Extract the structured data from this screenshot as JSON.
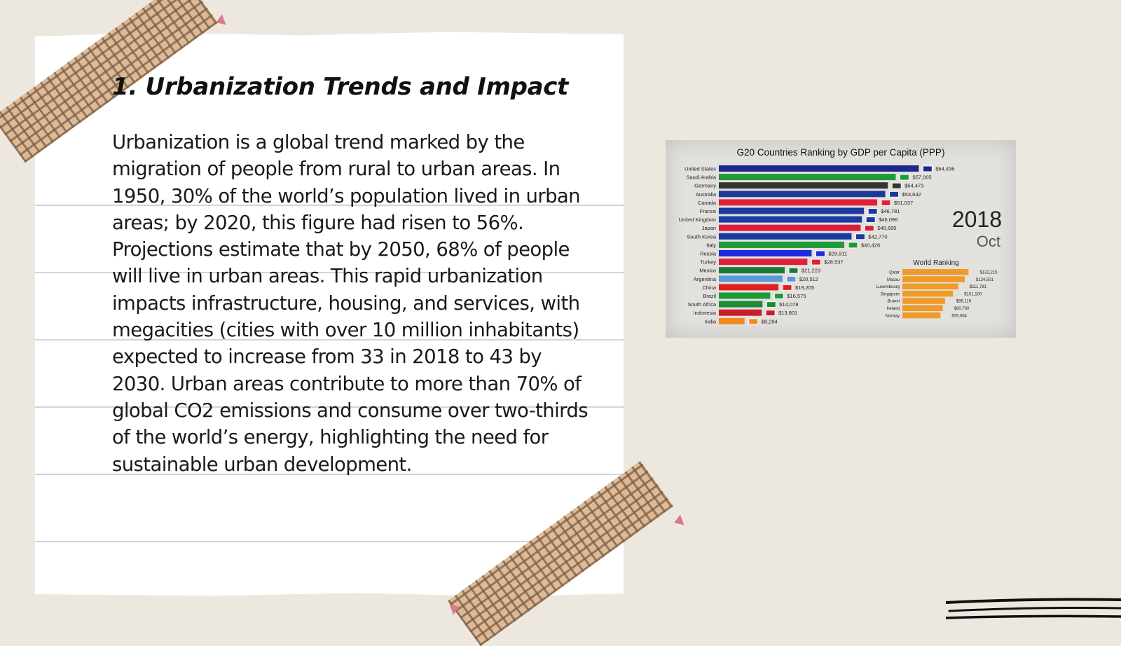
{
  "slide": {
    "title": "1. Urbanization Trends and Impact",
    "body": "Urbanization is a global trend marked by the migration of people from rural to urban areas. In 1950, 30% of the world’s population lived in urban areas; by 2020, this figure had risen to 56%. Projections estimate that by 2050, 68% of people will live in urban areas. This rapid urbanization impacts infrastructure, housing, and services, with megacities (cities with over 10 million inhabitants) expected to increase from 33 in 2018 to 43 by 2030. Urban areas contribute to more than 70% of global CO2 emissions and consume over two-thirds of the world’s energy, highlighting the need for sustainable urban development."
  },
  "colors": {
    "background": "#ece8e0",
    "paper": "#ffffff",
    "tape": "#d9b792",
    "pin": "#d97a88"
  },
  "chart_data": {
    "type": "bar",
    "orientation": "horizontal",
    "title": "G20 Countries Ranking by GDP per Capita (PPP)",
    "date_year": "2018",
    "date_month": "Oct",
    "xlim": [
      0,
      70000
    ],
    "series": [
      {
        "categories": [
          "United States",
          "Saudi Arabia",
          "Germany",
          "Australia",
          "Canada",
          "France",
          "United Kingdom",
          "Japan",
          "South Korea",
          "Italy",
          "Russia",
          "Turkey",
          "Mexico",
          "Argentina",
          "China",
          "Brazil",
          "South Africa",
          "Indonesia",
          "India"
        ],
        "values": [
          64436,
          57005,
          54473,
          53642,
          51037,
          46781,
          46096,
          45695,
          42770,
          40426,
          29911,
          28537,
          21223,
          20512,
          19205,
          16575,
          14078,
          13801,
          8294
        ],
        "labels": [
          "$64,436",
          "$57,005",
          "$54,473",
          "$53,642",
          "$51,037",
          "$46,781",
          "$46,096",
          "$45,695",
          "$42,770",
          "$40,426",
          "$29,911",
          "$28,537",
          "$21,223",
          "$20,512",
          "$19,205",
          "$16,575",
          "$14,078",
          "$13,801",
          "$8,294"
        ],
        "colors": [
          "#1a2a8a",
          "#1e9a3a",
          "#333333",
          "#1a3a9a",
          "#e0203a",
          "#1a3aa0",
          "#1a3aa0",
          "#d81e3a",
          "#1a3aa0",
          "#1e9a3a",
          "#1a2ae0",
          "#e0203a",
          "#1e7a3a",
          "#5a9ad8",
          "#e0201e",
          "#1e9a3a",
          "#1e8a3a",
          "#c81e2a",
          "#f08a1e"
        ]
      }
    ],
    "inset": {
      "title": "World Ranking",
      "categories": [
        "Qatar",
        "Macau",
        "Luxembourg",
        "Singapore",
        "Brunei",
        "Ireland",
        "Norway"
      ],
      "values": [
        132215,
        124501,
        111781,
        101100,
        85119,
        80700,
        76064
      ],
      "labels": [
        "$132,215",
        "$124,501",
        "$111,781",
        "$101,100",
        "$85,119",
        "$80,700",
        "$76,064"
      ],
      "xlim": [
        0,
        140000
      ],
      "color": "#f09a2a"
    }
  }
}
